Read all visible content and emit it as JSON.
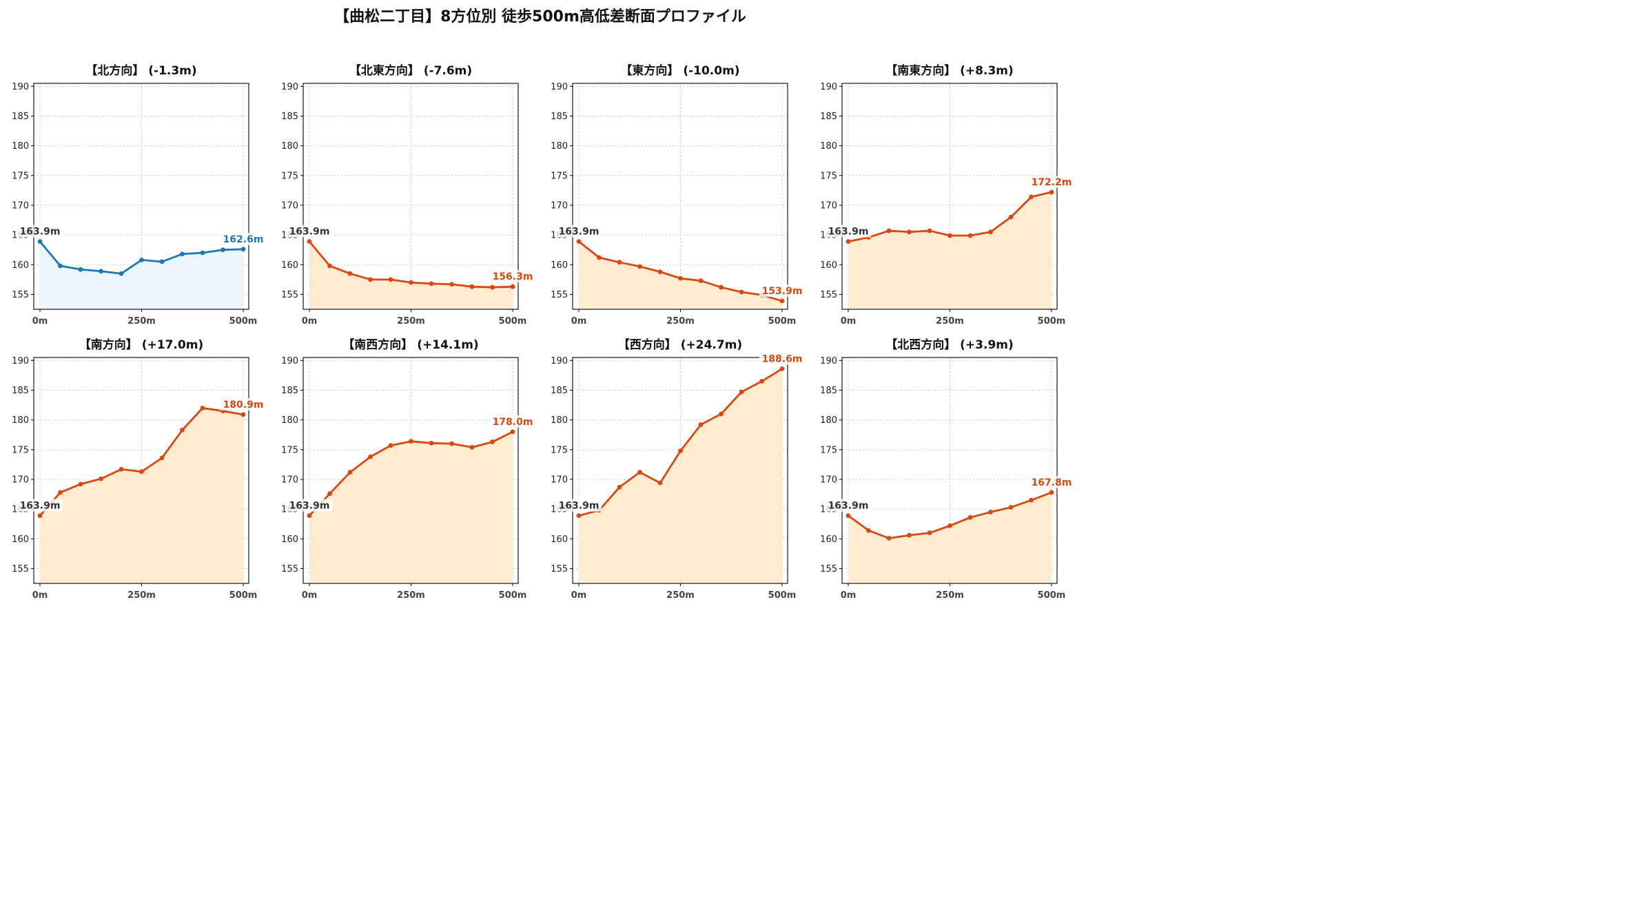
{
  "title": "【曲松二丁目】8方位別 徒歩500m高低差断面プロファイル",
  "colors": {
    "uphill_line": "#d9480f",
    "uphill_fill": "#ffecd0",
    "downhill_line": "#1f77b4",
    "downhill_fill": "#eaf6fc",
    "start_label": "#333333",
    "grid": "#c8c8c8"
  },
  "chart_data": [
    {
      "type": "line",
      "title": "【北方向】 (-1.3m)",
      "x": [
        0,
        50,
        100,
        150,
        200,
        250,
        300,
        350,
        400,
        450,
        500
      ],
      "values": [
        163.9,
        159.8,
        159.2,
        158.9,
        158.5,
        160.8,
        160.5,
        161.8,
        162.0,
        162.5,
        162.6
      ],
      "start_label": "163.9m",
      "end_label": "162.6m",
      "style": "blue",
      "xticks": [
        "0m",
        "250m",
        "500m"
      ],
      "yticks": [
        155,
        160,
        165,
        170,
        175,
        180,
        185,
        190
      ],
      "ylim": [
        152.5,
        190.5
      ],
      "xlim": [
        0,
        500
      ],
      "grid": true
    },
    {
      "type": "line",
      "title": "【北東方向】 (-7.6m)",
      "x": [
        0,
        50,
        100,
        150,
        200,
        250,
        300,
        350,
        400,
        450,
        500
      ],
      "values": [
        163.9,
        159.8,
        158.5,
        157.5,
        157.5,
        157.0,
        156.8,
        156.7,
        156.3,
        156.2,
        156.3
      ],
      "start_label": "163.9m",
      "end_label": "156.3m",
      "style": "orange",
      "xticks": [
        "0m",
        "250m",
        "500m"
      ],
      "yticks": [
        155,
        160,
        165,
        170,
        175,
        180,
        185,
        190
      ],
      "ylim": [
        152.5,
        190.5
      ],
      "xlim": [
        0,
        500
      ],
      "grid": true
    },
    {
      "type": "line",
      "title": "【東方向】 (-10.0m)",
      "x": [
        0,
        50,
        100,
        150,
        200,
        250,
        300,
        350,
        400,
        450,
        500
      ],
      "values": [
        163.9,
        161.2,
        160.4,
        159.7,
        158.8,
        157.7,
        157.3,
        156.2,
        155.4,
        154.9,
        153.9
      ],
      "start_label": "163.9m",
      "end_label": "153.9m",
      "style": "orange",
      "xticks": [
        "0m",
        "250m",
        "500m"
      ],
      "yticks": [
        155,
        160,
        165,
        170,
        175,
        180,
        185,
        190
      ],
      "ylim": [
        152.5,
        190.5
      ],
      "xlim": [
        0,
        500
      ],
      "grid": true
    },
    {
      "type": "line",
      "title": "【南東方向】 (+8.3m)",
      "x": [
        0,
        50,
        100,
        150,
        200,
        250,
        300,
        350,
        400,
        450,
        500
      ],
      "values": [
        163.9,
        164.6,
        165.7,
        165.5,
        165.7,
        164.9,
        164.9,
        165.5,
        168.0,
        171.4,
        172.2
      ],
      "start_label": "163.9m",
      "end_label": "172.2m",
      "style": "orange",
      "xticks": [
        "0m",
        "250m",
        "500m"
      ],
      "yticks": [
        155,
        160,
        165,
        170,
        175,
        180,
        185,
        190
      ],
      "ylim": [
        152.5,
        190.5
      ],
      "xlim": [
        0,
        500
      ],
      "grid": true
    },
    {
      "type": "line",
      "title": "【南方向】 (+17.0m)",
      "x": [
        0,
        50,
        100,
        150,
        200,
        250,
        300,
        350,
        400,
        450,
        500
      ],
      "values": [
        163.9,
        167.8,
        169.2,
        170.1,
        171.7,
        171.3,
        173.6,
        178.3,
        182.0,
        181.5,
        180.9
      ],
      "start_label": "163.9m",
      "end_label": "180.9m",
      "style": "orange",
      "xticks": [
        "0m",
        "250m",
        "500m"
      ],
      "yticks": [
        155,
        160,
        165,
        170,
        175,
        180,
        185,
        190
      ],
      "ylim": [
        152.5,
        190.5
      ],
      "xlim": [
        0,
        500
      ],
      "grid": true
    },
    {
      "type": "line",
      "title": "【南西方向】 (+14.1m)",
      "x": [
        0,
        50,
        100,
        150,
        200,
        250,
        300,
        350,
        400,
        450,
        500
      ],
      "values": [
        163.9,
        167.6,
        171.2,
        173.8,
        175.7,
        176.4,
        176.1,
        176.0,
        175.4,
        176.3,
        178.0
      ],
      "start_label": "163.9m",
      "end_label": "178.0m",
      "style": "orange",
      "xticks": [
        "0m",
        "250m",
        "500m"
      ],
      "yticks": [
        155,
        160,
        165,
        170,
        175,
        180,
        185,
        190
      ],
      "ylim": [
        152.5,
        190.5
      ],
      "xlim": [
        0,
        500
      ],
      "grid": true
    },
    {
      "type": "line",
      "title": "【西方向】 (+24.7m)",
      "x": [
        0,
        50,
        100,
        150,
        200,
        250,
        300,
        350,
        400,
        450,
        500
      ],
      "values": [
        163.9,
        164.8,
        168.7,
        171.2,
        169.4,
        174.8,
        179.2,
        181.0,
        184.7,
        186.5,
        188.6
      ],
      "start_label": "163.9m",
      "end_label": "188.6m",
      "style": "orange",
      "xticks": [
        "0m",
        "250m",
        "500m"
      ],
      "yticks": [
        155,
        160,
        165,
        170,
        175,
        180,
        185,
        190
      ],
      "ylim": [
        152.5,
        190.5
      ],
      "xlim": [
        0,
        500
      ],
      "grid": true
    },
    {
      "type": "line",
      "title": "【北西方向】 (+3.9m)",
      "x": [
        0,
        50,
        100,
        150,
        200,
        250,
        300,
        350,
        400,
        450,
        500
      ],
      "values": [
        163.9,
        161.4,
        160.1,
        160.6,
        161.0,
        162.2,
        163.6,
        164.5,
        165.3,
        166.5,
        167.8
      ],
      "start_label": "163.9m",
      "end_label": "167.8m",
      "style": "orange",
      "xticks": [
        "0m",
        "250m",
        "500m"
      ],
      "yticks": [
        155,
        160,
        165,
        170,
        175,
        180,
        185,
        190
      ],
      "ylim": [
        152.5,
        190.5
      ],
      "xlim": [
        0,
        500
      ],
      "grid": true
    }
  ]
}
